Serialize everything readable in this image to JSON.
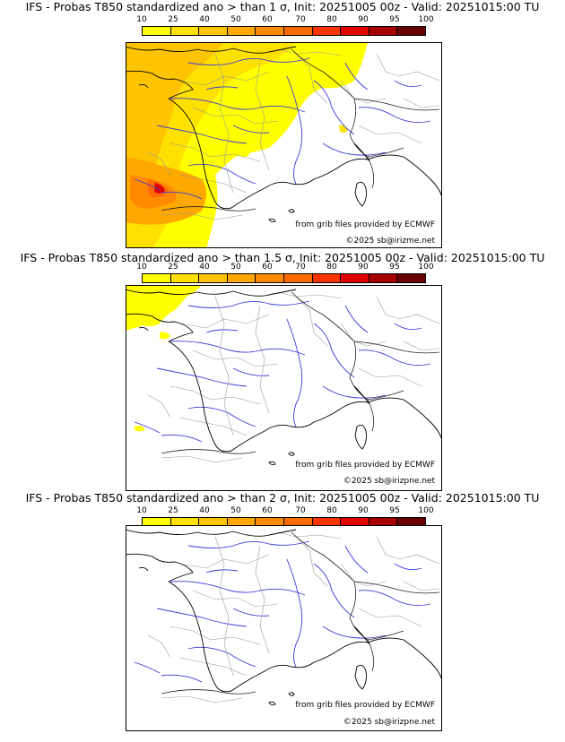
{
  "colorbar": {
    "ticks": [
      "10",
      "25",
      "40",
      "50",
      "60",
      "70",
      "80",
      "90",
      "95",
      "100"
    ],
    "colors": [
      "#ffff00",
      "#ffe100",
      "#ffc400",
      "#ffa800",
      "#ff8a00",
      "#ff6a00",
      "#ff3500",
      "#e00000",
      "#a80000",
      "#6a0000"
    ]
  },
  "panels": [
    {
      "title": "IFS - Probas T850  standardized ano > than 1 σ, Init: 20251005 00z - Valid: 20251015:00 TU",
      "threshold_sigma": 1,
      "credit_source": "from grib files provided by ECMWF",
      "credit_copyright": "©2025 sb@irizme.net"
    },
    {
      "title": "IFS - Probas T850  standardized ano > than 1.5 σ, Init: 20251005 00z - Valid: 20251015:00 TU",
      "threshold_sigma": 1.5,
      "credit_source": "from grib files provided by ECMWF",
      "credit_copyright": "©2025 sb@irizpne.net"
    },
    {
      "title": "IFS - Probas T850  standardized ano > than 2 σ, Init: 20251005 00z - Valid: 20251015:00 TU",
      "threshold_sigma": 2,
      "credit_source": "from grib files provided by ECMWF",
      "credit_copyright": "©2025 sb@irizpne.net"
    }
  ]
}
